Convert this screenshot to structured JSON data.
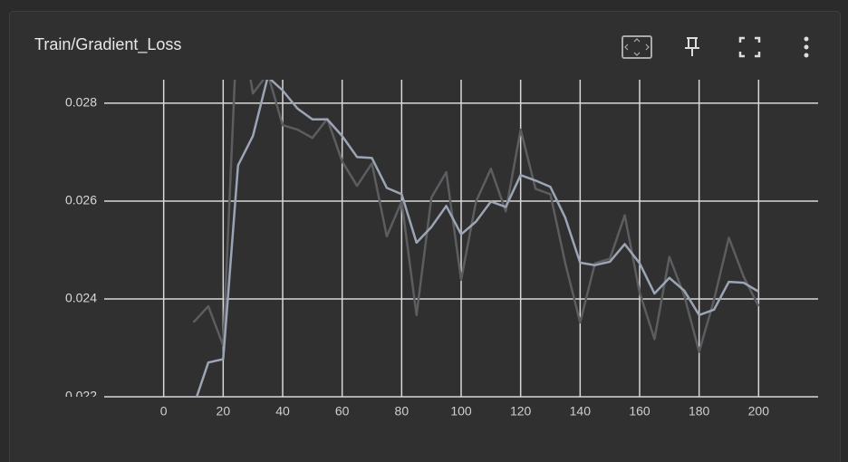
{
  "chart_data": {
    "type": "line",
    "title": "Train/Gradient_Loss",
    "x": [
      10,
      15,
      20,
      25,
      30,
      35,
      40,
      45,
      50,
      55,
      60,
      65,
      70,
      75,
      80,
      85,
      90,
      95,
      100,
      105,
      110,
      115,
      120,
      125,
      130,
      135,
      140,
      145,
      150,
      155,
      160,
      165,
      170,
      175,
      180,
      185,
      190,
      195,
      200
    ],
    "series": [
      {
        "color": "#5c5d60",
        "values": [
          0.02352,
          0.02385,
          0.02305,
          0.03,
          0.0282,
          0.0286,
          0.02755,
          0.02746,
          0.02729,
          0.02768,
          0.02681,
          0.02631,
          0.02677,
          0.02528,
          0.02599,
          0.02367,
          0.02607,
          0.02659,
          0.02439,
          0.02599,
          0.02666,
          0.02579,
          0.02746,
          0.02625,
          0.02614,
          0.02473,
          0.02352,
          0.02473,
          0.02482,
          0.02571,
          0.02413,
          0.02318,
          0.02486,
          0.02407,
          0.02292,
          0.02398,
          0.02525,
          0.02445,
          0.02385
        ]
      },
      {
        "color": "#9ba5b5",
        "values": [
          0.0218,
          0.0227,
          0.02277,
          0.02673,
          0.02733,
          0.02854,
          0.02826,
          0.02789,
          0.02767,
          0.02767,
          0.02733,
          0.0269,
          0.02688,
          0.02627,
          0.02614,
          0.02515,
          0.02547,
          0.0259,
          0.02532,
          0.02558,
          0.02599,
          0.02588,
          0.02653,
          0.02642,
          0.02629,
          0.02566,
          0.02474,
          0.02469,
          0.02476,
          0.02512,
          0.02473,
          0.02411,
          0.02443,
          0.02417,
          0.02367,
          0.02378,
          0.02435,
          0.02433,
          0.02415
        ]
      }
    ],
    "xlim": [
      -20,
      220
    ],
    "xticks": [
      0,
      20,
      40,
      60,
      80,
      100,
      120,
      140,
      160,
      180,
      200
    ],
    "ylim": [
      0.022,
      0.02848
    ],
    "yticks": [
      0.022,
      0.024,
      0.026,
      0.028
    ],
    "grid": true
  }
}
